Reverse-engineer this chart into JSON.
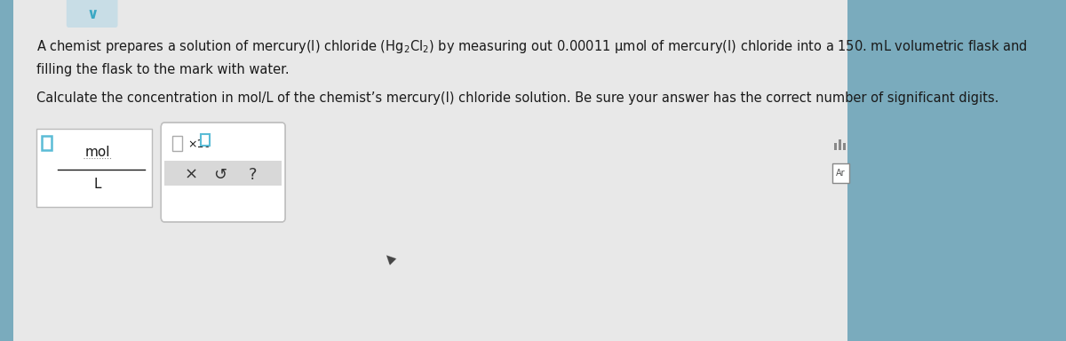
{
  "outer_bg": "#7aabbd",
  "main_bg": "#e8e8e8",
  "white": "#ffffff",
  "text_color": "#1a1a1a",
  "mid_gray": "#cccccc",
  "btn_bg": "#d8d8d8",
  "teal_border": "#5bbcd6",
  "line1a": "A chemist prepares a solution of mercury(I) chloride ",
  "line1_formula": "(Hg",
  "line1_sub1": "2",
  "line1_mid": "Cl",
  "line1_sub2": "2",
  "line1_end": ")",
  "line1b": " by measuring out 0.00011 μmol of mercury(I) chloride into a 150. mL volumetric flask and",
  "line2": "filling the flask to the mark with water.",
  "line3": "Calculate the concentration in mol/L of the chemist’s mercury(I) chloride solution. Be sure your answer has the correct number of significant digits.",
  "fraction_num": "mol",
  "fraction_den": "L",
  "chevron_color": "#3ba8c4",
  "chevron_bg": "#c8dde6"
}
